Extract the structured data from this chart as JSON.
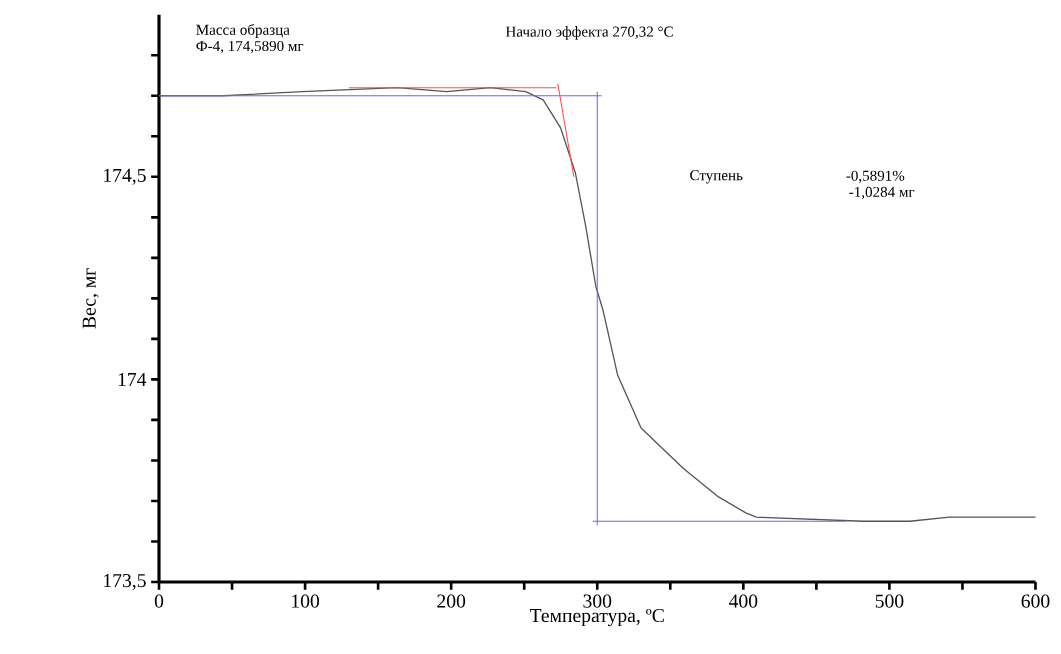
{
  "chart_data": {
    "type": "line",
    "xlabel": "Температура, ºС",
    "ylabel": "Вес, мг",
    "annotations": [
      "Масса образца",
      "Ф-4, 174,5890 мг",
      "Начало эффекта 270,32 °С",
      "Ступень",
      "-0,5891%",
      "-1,0284 мг"
    ],
    "xlim": [
      0,
      600
    ],
    "ylim": [
      173.5,
      174.9
    ],
    "xticks": [
      0,
      {
        "value": 50,
        "label": null
      },
      100,
      {
        "value": 150,
        "label": null
      },
      200,
      {
        "value": 250,
        "label": null
      },
      300,
      {
        "value": 350,
        "label": null
      },
      400,
      {
        "value": 450,
        "label": null
      },
      500,
      {
        "value": 550,
        "label": null
      },
      600
    ],
    "yticks": [
      {
        "value": 173.5,
        "label": "173,5"
      },
      {
        "value": 173.6,
        "label": null
      },
      {
        "value": 173.7,
        "label": null
      },
      {
        "value": 173.8,
        "label": null
      },
      {
        "value": 173.9,
        "label": null
      },
      {
        "value": 174,
        "label": "174"
      },
      {
        "value": 174.1,
        "label": null
      },
      {
        "value": 174.2,
        "label": null
      },
      {
        "value": 174.3,
        "label": null
      },
      {
        "value": 174.4,
        "label": null
      },
      {
        "value": 174.5,
        "label": "174,5"
      },
      {
        "value": 174.6,
        "label": null
      },
      {
        "value": 174.7,
        "label": null
      },
      {
        "value": 174.8,
        "label": null
      }
    ],
    "grid": false,
    "marker": "none",
    "series": [
      {
        "color": "#555555",
        "x": [
          0,
          44,
          98,
          163,
          197,
          227,
          251,
          263,
          275,
          285,
          292,
          299,
          304,
          314,
          330,
          359,
          383,
          402,
          409,
          482,
          514,
          541,
          590,
          600
        ],
        "values": [
          174.7,
          174.7,
          174.71,
          174.72,
          174.71,
          174.72,
          174.71,
          174.69,
          174.62,
          174.51,
          174.38,
          174.23,
          174.17,
          174.01,
          173.88,
          173.78,
          173.71,
          173.67,
          173.66,
          173.65,
          173.65,
          173.66,
          173.66,
          173.66
        ]
      },
      {
        "color": "#6666ff",
        "x": [
          0,
          303
        ],
        "values": [
          174.7,
          174.7
        ]
      },
      {
        "color": "#6666ff",
        "x": [
          300,
          300
        ],
        "values": [
          174.71,
          173.64
        ]
      },
      {
        "color": "#6666ff",
        "x": [
          297,
          470
        ],
        "values": [
          173.65,
          173.65
        ]
      },
      {
        "color": "#ff4d4d",
        "x": [
          130,
          272
        ],
        "values": [
          174.72,
          174.72
        ]
      },
      {
        "color": "#ff4d4d",
        "x": [
          273,
          284
        ],
        "values": [
          174.73,
          174.5
        ]
      }
    ]
  }
}
